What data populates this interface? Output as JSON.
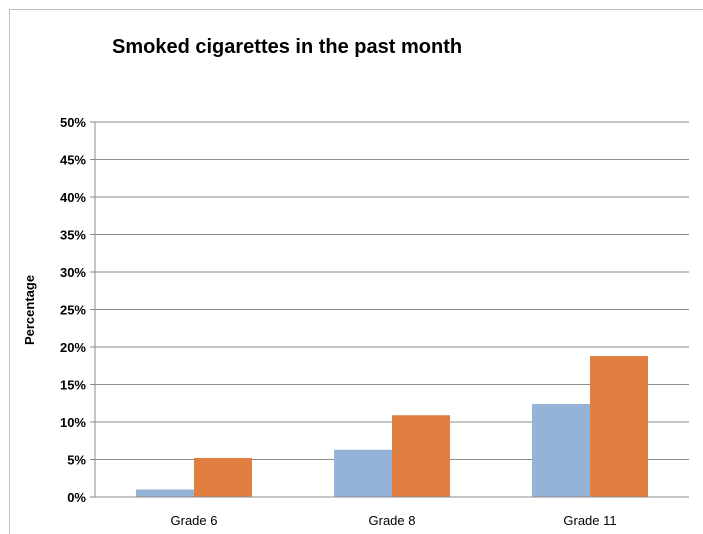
{
  "chart_data": {
    "type": "bar",
    "title": "Smoked cigarettes in the past month",
    "xlabel": "",
    "ylabel": "Percentage",
    "categories": [
      "Grade 6",
      "Grade 8",
      "Grade 11"
    ],
    "series": [
      {
        "values": [
          1,
          6.3,
          12.4
        ],
        "color": "#95b3d7"
      },
      {
        "values": [
          5.2,
          10.9,
          18.8
        ],
        "color": "#e07f40"
      }
    ],
    "ylim": [
      0,
      50
    ],
    "yticks": [
      0,
      5,
      10,
      15,
      20,
      25,
      30,
      35,
      40,
      45,
      50
    ],
    "ytick_labels": [
      "0%",
      "5%",
      "10%",
      "15%",
      "20%",
      "25%",
      "30%",
      "35%",
      "40%",
      "45%",
      "50%"
    ],
    "grid": true,
    "legend": "none"
  }
}
